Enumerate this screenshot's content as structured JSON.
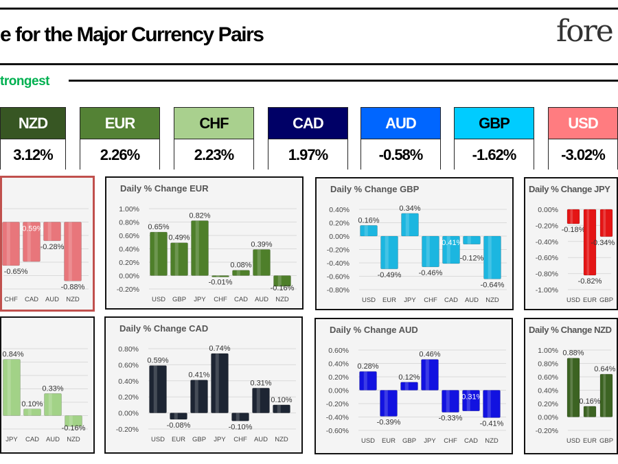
{
  "header": {
    "title": "e for the Major Currency Pairs",
    "logo": "fore",
    "section_label": "trongest"
  },
  "ranking": [
    {
      "currency": "NZD",
      "change": "3.12%",
      "bg": "#375623",
      "fg": "#ffffff"
    },
    {
      "currency": "EUR",
      "change": "2.26%",
      "bg": "#548235",
      "fg": "#ffffff"
    },
    {
      "currency": "CHF",
      "change": "2.23%",
      "bg": "#a9d08e",
      "fg": "#000000"
    },
    {
      "currency": "CAD",
      "change": "1.97%",
      "bg": "#000066",
      "fg": "#ffffff"
    },
    {
      "currency": "AUD",
      "change": "-0.58%",
      "bg": "#0066ff",
      "fg": "#ffffff"
    },
    {
      "currency": "GBP",
      "change": "-1.62%",
      "bg": "#00ccff",
      "fg": "#000000"
    },
    {
      "currency": "USD",
      "change": "-3.02%",
      "bg": "#ff7c80",
      "fg": "#ffffff"
    }
  ],
  "chart_data": [
    {
      "type": "bar",
      "key": "usd",
      "title": "",
      "color": "#e8767b",
      "ticks": [],
      "ylim": [
        -1.0,
        0.2
      ],
      "categories": [
        "CHF",
        "CAD",
        "AUD",
        "NZD"
      ],
      "values": [
        -0.65,
        -0.59,
        -0.28,
        -0.88
      ]
    },
    {
      "type": "bar",
      "key": "eur",
      "title": "Daily % Change EUR",
      "color": "#4e7f2a",
      "ticks": [
        1.0,
        0.8,
        0.6,
        0.4,
        0.2,
        0.0,
        -0.2
      ],
      "ylim": [
        -0.2,
        1.0
      ],
      "categories": [
        "USD",
        "GBP",
        "JPY",
        "CHF",
        "CAD",
        "AUD",
        "NZD"
      ],
      "values": [
        0.65,
        0.49,
        0.82,
        -0.01,
        0.08,
        0.39,
        -0.16
      ]
    },
    {
      "type": "bar",
      "key": "gbp",
      "title": "Daily % Change GBP",
      "color": "#1cb6e0",
      "ticks": [
        0.4,
        0.2,
        0.0,
        -0.2,
        -0.4,
        -0.6,
        -0.8
      ],
      "ylim": [
        -0.8,
        0.4
      ],
      "categories": [
        "USD",
        "EUR",
        "JPY",
        "CHF",
        "CAD",
        "AUD",
        "NZD"
      ],
      "values": [
        0.16,
        -0.49,
        0.34,
        -0.46,
        -0.41,
        -0.12,
        -0.64
      ]
    },
    {
      "type": "bar",
      "key": "jpy",
      "title": "Daily % Change JPY",
      "color": "#e41515",
      "ticks": [
        0.0,
        -0.2,
        -0.4,
        -0.6,
        -0.8,
        -1.0
      ],
      "ylim": [
        -1.0,
        0.0
      ],
      "categories": [
        "USD",
        "EUR",
        "GBP"
      ],
      "values": [
        -0.18,
        -0.82,
        -0.34
      ]
    },
    {
      "type": "bar",
      "key": "chf",
      "title": "",
      "color": "#a2d287",
      "ticks": [],
      "ylim": [
        -0.2,
        1.0
      ],
      "categories": [
        "JPY",
        "CAD",
        "AUD",
        "NZD"
      ],
      "values": [
        0.84,
        0.1,
        0.33,
        -0.16
      ]
    },
    {
      "type": "bar",
      "key": "cad",
      "title": "Daily % Change CAD",
      "color": "#1d2533",
      "ticks": [
        0.8,
        0.6,
        0.4,
        0.2,
        0.0,
        -0.2
      ],
      "ylim": [
        -0.2,
        0.8
      ],
      "categories": [
        "USD",
        "EUR",
        "GBP",
        "JPY",
        "CHF",
        "AUD",
        "NZD"
      ],
      "values": [
        0.59,
        -0.08,
        0.41,
        0.74,
        -0.1,
        0.31,
        0.1
      ]
    },
    {
      "type": "bar",
      "key": "aud",
      "title": "Daily % Change AUD",
      "color": "#1212e0",
      "ticks": [
        0.6,
        0.4,
        0.2,
        0.0,
        -0.2,
        -0.4,
        -0.6
      ],
      "ylim": [
        -0.6,
        0.6
      ],
      "categories": [
        "USD",
        "EUR",
        "GBP",
        "JPY",
        "CHF",
        "CAD",
        "NZD"
      ],
      "values": [
        0.28,
        -0.39,
        0.12,
        0.46,
        -0.33,
        -0.31,
        -0.41
      ]
    },
    {
      "type": "bar",
      "key": "nzd",
      "title": "Daily % Change NZD",
      "color": "#3c6322",
      "ticks": [
        1.0,
        0.8,
        0.6,
        0.4,
        0.2,
        0.0,
        -0.2
      ],
      "ylim": [
        -0.2,
        1.0
      ],
      "categories": [
        "USD",
        "EUR",
        "GBP"
      ],
      "values": [
        0.88,
        0.16,
        0.64
      ]
    }
  ]
}
